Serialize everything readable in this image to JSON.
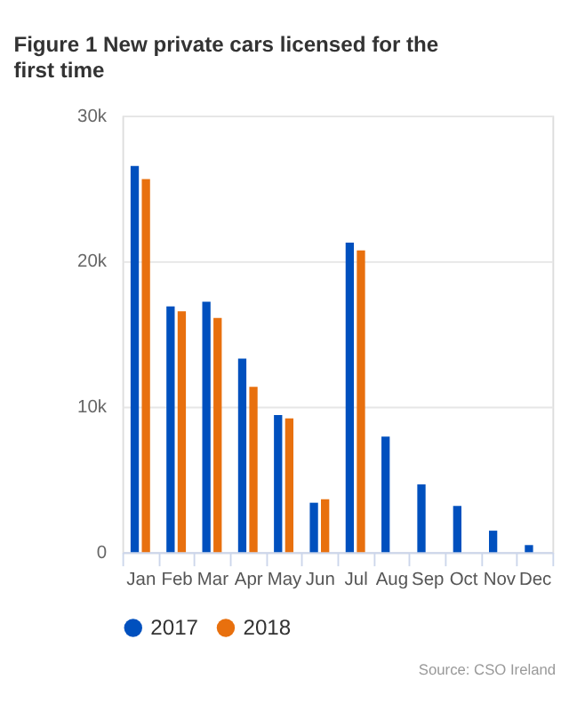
{
  "chart_data": {
    "type": "bar",
    "title": "Figure 1 New private cars licensed for the first time",
    "categories": [
      "Jan",
      "Feb",
      "Mar",
      "Apr",
      "May",
      "Jun",
      "Jul",
      "Aug",
      "Sep",
      "Oct",
      "Nov",
      "Dec"
    ],
    "series": [
      {
        "name": "2017",
        "color": "#0050be",
        "values": [
          26550,
          16890,
          17220,
          13300,
          9430,
          3400,
          21270,
          7950,
          4660,
          3180,
          1480,
          490
        ]
      },
      {
        "name": "2018",
        "color": "#e8700e",
        "values": [
          25650,
          16550,
          16100,
          11360,
          9200,
          3640,
          20740,
          null,
          null,
          null,
          null,
          null
        ]
      }
    ],
    "ylim": [
      0,
      30000
    ],
    "yticks": [
      0,
      {
        "value": 10000,
        "label": "10k"
      },
      {
        "value": 20000,
        "label": "20k"
      },
      {
        "value": 30000,
        "label": "30k"
      }
    ],
    "grid": "y",
    "legend": "bottom",
    "annotations": [
      "Source: CSO Ireland"
    ]
  }
}
